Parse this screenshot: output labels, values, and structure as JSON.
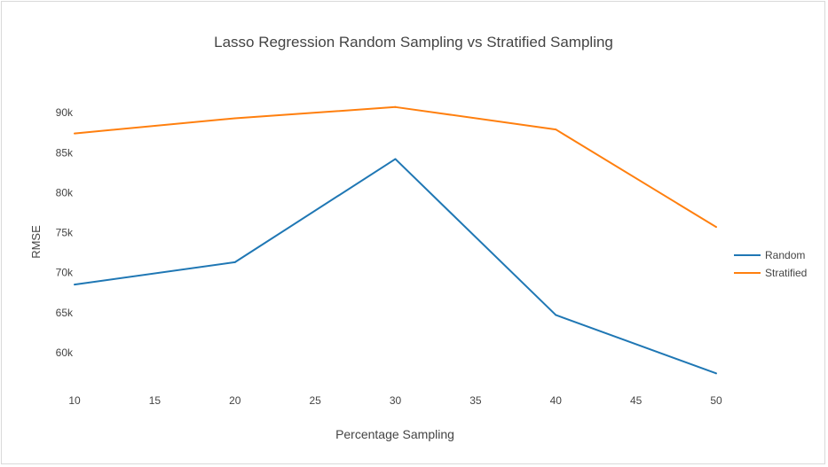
{
  "chart_data": {
    "type": "line",
    "title": "Lasso Regression Random Sampling vs Stratified Sampling",
    "xlabel": "Percentage Sampling",
    "ylabel": "RMSE",
    "x": [
      10,
      20,
      30,
      40,
      50
    ],
    "xlim": [
      10,
      50
    ],
    "ylim": [
      55000,
      95000
    ],
    "x_ticks": [
      10,
      15,
      20,
      25,
      30,
      35,
      40,
      45,
      50
    ],
    "y_ticks": [
      60000,
      65000,
      70000,
      75000,
      80000,
      85000,
      90000
    ],
    "x_tick_labels": [
      "10",
      "15",
      "20",
      "25",
      "30",
      "35",
      "40",
      "45",
      "50"
    ],
    "y_tick_labels": [
      "60k",
      "65k",
      "70k",
      "75k",
      "80k",
      "85k",
      "90k"
    ],
    "grid": false,
    "legend_position": "right",
    "series": [
      {
        "name": "Random",
        "color": "#1f77b4",
        "values": [
          68500,
          71300,
          84200,
          64700,
          57400
        ]
      },
      {
        "name": "Stratified",
        "color": "#ff7f0e",
        "values": [
          87400,
          89300,
          90700,
          87900,
          75700
        ]
      }
    ]
  }
}
